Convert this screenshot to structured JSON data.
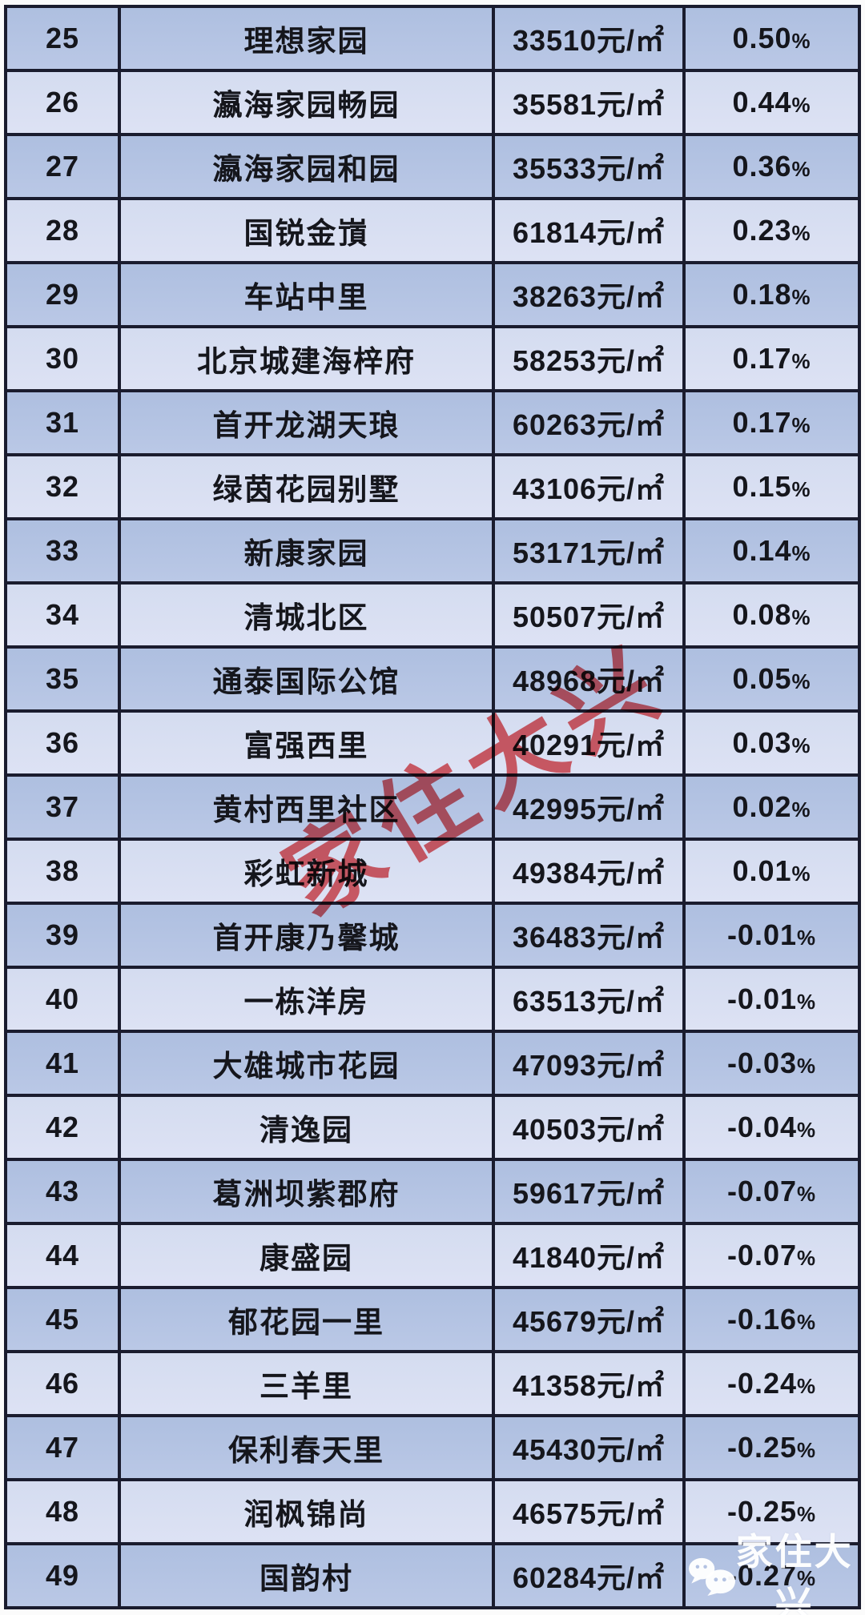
{
  "page": {
    "background": "#fbfbfb"
  },
  "table": {
    "unit_suffix": "元/㎡",
    "colors": {
      "row_dark": "#b3c3e3",
      "row_light": "#dadff2",
      "border": "#1a1c2e",
      "text": "#15161c"
    },
    "rows": [
      {
        "rank": "25",
        "name": "理想家园",
        "price": "33510",
        "change": "0.50%"
      },
      {
        "rank": "26",
        "name": "瀛海家园畅园",
        "price": "35581",
        "change": "0.44%"
      },
      {
        "rank": "27",
        "name": "瀛海家园和园",
        "price": "35533",
        "change": "0.36%"
      },
      {
        "rank": "28",
        "name": "国锐金嵿",
        "price": "61814",
        "change": "0.23%"
      },
      {
        "rank": "29",
        "name": "车站中里",
        "price": "38263",
        "change": "0.18%"
      },
      {
        "rank": "30",
        "name": "北京城建海梓府",
        "price": "58253",
        "change": "0.17%"
      },
      {
        "rank": "31",
        "name": "首开龙湖天琅",
        "price": "60263",
        "change": "0.17%"
      },
      {
        "rank": "32",
        "name": "绿茵花园别墅",
        "price": "43106",
        "change": "0.15%"
      },
      {
        "rank": "33",
        "name": "新康家园",
        "price": "53171",
        "change": "0.14%"
      },
      {
        "rank": "34",
        "name": "清城北区",
        "price": "50507",
        "change": "0.08%"
      },
      {
        "rank": "35",
        "name": "通泰国际公馆",
        "price": "48968",
        "change": "0.05%"
      },
      {
        "rank": "36",
        "name": "富强西里",
        "price": "40291",
        "change": "0.03%"
      },
      {
        "rank": "37",
        "name": "黄村西里社区",
        "price": "42995",
        "change": "0.02%"
      },
      {
        "rank": "38",
        "name": "彩虹新城",
        "price": "49384",
        "change": "0.01%"
      },
      {
        "rank": "39",
        "name": "首开康乃馨城",
        "price": "36483",
        "change": "-0.01%"
      },
      {
        "rank": "40",
        "name": "一栋洋房",
        "price": "63513",
        "change": "-0.01%"
      },
      {
        "rank": "41",
        "name": "大雄城市花园",
        "price": "47093",
        "change": "-0.03%"
      },
      {
        "rank": "42",
        "name": "清逸园",
        "price": "40503",
        "change": "-0.04%"
      },
      {
        "rank": "43",
        "name": "葛洲坝紫郡府",
        "price": "59617",
        "change": "-0.07%"
      },
      {
        "rank": "44",
        "name": "康盛园",
        "price": "41840",
        "change": "-0.07%"
      },
      {
        "rank": "45",
        "name": "郁花园一里",
        "price": "45679",
        "change": "-0.16%"
      },
      {
        "rank": "46",
        "name": "三羊里",
        "price": "41358",
        "change": "-0.24%"
      },
      {
        "rank": "47",
        "name": "保利春天里",
        "price": "45430",
        "change": "-0.25%"
      },
      {
        "rank": "48",
        "name": "润枫锦尚",
        "price": "46575",
        "change": "-0.25%"
      },
      {
        "rank": "49",
        "name": "国韵村",
        "price": "60284",
        "change": "-0.27%",
        "overlay": true
      }
    ]
  },
  "red_watermark": {
    "text": "家住大兴",
    "color": "#e03a41"
  },
  "account_badge": {
    "icon": "wechat-icon",
    "text": "家住大兴"
  }
}
